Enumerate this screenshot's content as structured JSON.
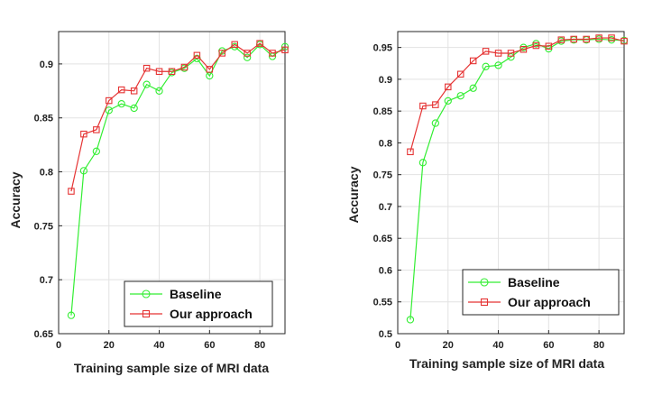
{
  "colors": {
    "baseline": "#33ee33",
    "ours": "#e53333",
    "axis": "#262626",
    "grid": "#e2e2e2",
    "bg": "#ffffff"
  },
  "chart_data": [
    {
      "type": "line",
      "xlabel": "Training sample size of MRI data",
      "ylabel": "Accuracy",
      "xlim": [
        0,
        90
      ],
      "ylim": [
        0.65,
        0.93
      ],
      "xticks": [
        0,
        20,
        40,
        60,
        80
      ],
      "xtick_labels": [
        "0",
        "20",
        "40",
        "60",
        "80"
      ],
      "yticks": [
        0.65,
        0.7,
        0.75,
        0.8,
        0.85,
        0.9
      ],
      "ytick_labels": [
        "0.65",
        "0.7",
        "0.75",
        "0.8",
        "0.85",
        "0.9"
      ],
      "grid": true,
      "legend_position": "bottom-right",
      "x": [
        5,
        10,
        15,
        20,
        25,
        30,
        35,
        40,
        45,
        50,
        55,
        60,
        65,
        70,
        75,
        80,
        85,
        90
      ],
      "series": [
        {
          "name": "Baseline",
          "marker": "circle",
          "color_key": "baseline",
          "values": [
            0.667,
            0.801,
            0.819,
            0.857,
            0.863,
            0.859,
            0.881,
            0.875,
            0.892,
            0.896,
            0.905,
            0.889,
            0.912,
            0.916,
            0.906,
            0.918,
            0.907,
            0.916
          ]
        },
        {
          "name": "Our approach",
          "marker": "square",
          "color_key": "ours",
          "values": [
            0.782,
            0.835,
            0.839,
            0.866,
            0.876,
            0.875,
            0.896,
            0.893,
            0.893,
            0.897,
            0.908,
            0.895,
            0.91,
            0.918,
            0.91,
            0.919,
            0.91,
            0.913
          ]
        }
      ]
    },
    {
      "type": "line",
      "xlabel": "Training sample size of MRI data",
      "ylabel": "Accuracy",
      "xlim": [
        0,
        90
      ],
      "ylim": [
        0.5,
        0.975
      ],
      "xticks": [
        0,
        20,
        40,
        60,
        80
      ],
      "xtick_labels": [
        "0",
        "20",
        "40",
        "60",
        "80"
      ],
      "yticks": [
        0.5,
        0.55,
        0.6,
        0.65,
        0.7,
        0.75,
        0.8,
        0.85,
        0.9,
        0.95
      ],
      "ytick_labels": [
        "0.5",
        "0.55",
        "0.6",
        "0.65",
        "0.7",
        "0.75",
        "0.8",
        "0.85",
        "0.9",
        "0.95"
      ],
      "grid": true,
      "legend_position": "bottom-right",
      "x": [
        5,
        10,
        15,
        20,
        25,
        30,
        35,
        40,
        45,
        50,
        55,
        60,
        65,
        70,
        75,
        80,
        85,
        90
      ],
      "series": [
        {
          "name": "Baseline",
          "marker": "circle",
          "color_key": "baseline",
          "values": [
            0.522,
            0.769,
            0.831,
            0.866,
            0.874,
            0.886,
            0.92,
            0.922,
            0.935,
            0.95,
            0.956,
            0.948,
            0.96,
            0.962,
            0.962,
            0.963,
            0.962,
            0.961
          ]
        },
        {
          "name": "Our approach",
          "marker": "square",
          "color_key": "ours",
          "values": [
            0.786,
            0.858,
            0.86,
            0.888,
            0.908,
            0.929,
            0.944,
            0.941,
            0.941,
            0.947,
            0.953,
            0.952,
            0.962,
            0.963,
            0.963,
            0.965,
            0.965,
            0.96
          ]
        }
      ]
    }
  ]
}
